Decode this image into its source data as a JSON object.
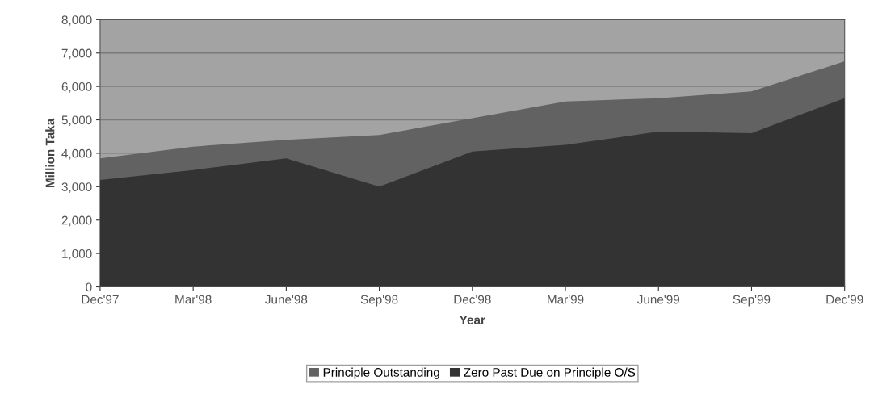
{
  "chart_data": {
    "type": "area",
    "xlabel": "Year",
    "ylabel": "Million Taka",
    "categories": [
      "Dec'97",
      "Mar'98",
      "June'98",
      "Sep'98",
      "Dec'98",
      "Mar'99",
      "June'99",
      "Sep'99",
      "Dec'99"
    ],
    "series": [
      {
        "name": "Principle Outstanding",
        "color": "#626262",
        "values": [
          3850,
          4200,
          4400,
          4550,
          5050,
          5550,
          5650,
          5850,
          6750
        ]
      },
      {
        "name": "Zero Past Due on Principle O/S",
        "color": "#333333",
        "values": [
          3200,
          3500,
          3850,
          3000,
          4050,
          4250,
          4650,
          4600,
          5650
        ]
      }
    ],
    "ylim": [
      0,
      8000
    ],
    "yticks": [
      0,
      {
        "value": 1000,
        "label": "1,000"
      },
      {
        "value": 2000,
        "label": "2,000"
      },
      {
        "value": 3000,
        "label": "3,000"
      },
      {
        "value": 4000,
        "label": "4,000"
      },
      {
        "value": 5000,
        "label": "5,000"
      },
      {
        "value": 6000,
        "label": "6,000"
      },
      {
        "value": 7000,
        "label": "7,000"
      },
      {
        "value": 8000,
        "label": "8,000"
      }
    ],
    "grid": "y",
    "legend": "bottom"
  }
}
